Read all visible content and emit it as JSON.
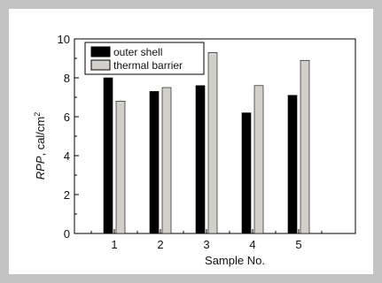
{
  "chart_data": {
    "type": "bar",
    "categories": [
      "1",
      "2",
      "3",
      "4",
      "5"
    ],
    "series": [
      {
        "name": "outer shell",
        "values": [
          8.0,
          7.3,
          7.6,
          6.2,
          7.1
        ],
        "color": "#000000"
      },
      {
        "name": "thermal barrier",
        "values": [
          6.8,
          7.5,
          9.3,
          7.6,
          8.9
        ],
        "color": "#d3d0cb"
      }
    ],
    "xlabel": "Sample No.",
    "ylabel_italic": "RPP",
    "ylabel_unit": ", cal/cm",
    "ylabel_sup": "2",
    "ylim": [
      0,
      10
    ],
    "yticks": [
      0,
      2,
      4,
      6,
      8,
      10
    ],
    "legend_position": "top-left",
    "grid": false,
    "frame_color": "#c3c3c3"
  }
}
